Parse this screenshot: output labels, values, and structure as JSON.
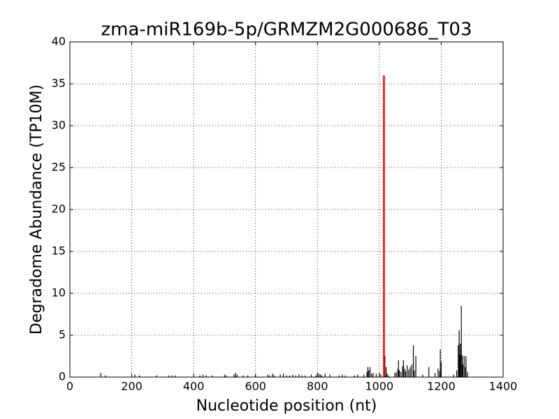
{
  "chart_data": {
    "type": "bar",
    "title": "zma-miR169b-5p/GRMZM2G000686_T03",
    "xlabel": "Nucleotide position (nt)",
    "ylabel": "Degradome Abundance (TP10M)",
    "xlim": [
      0,
      1400
    ],
    "xticks": [
      0,
      200,
      400,
      600,
      800,
      1000,
      1200,
      1400
    ],
    "ylim": [
      0,
      40
    ],
    "yticks": [
      0,
      5,
      10,
      15,
      20,
      25,
      30,
      35,
      40
    ],
    "grid": true,
    "color": "#000000",
    "x": [
      100,
      115,
      210,
      225,
      280,
      320,
      330,
      340,
      420,
      430,
      440,
      460,
      500,
      505,
      530,
      535,
      540,
      560,
      575,
      600,
      640,
      645,
      655,
      660,
      680,
      690,
      700,
      710,
      720,
      730,
      740,
      750,
      760,
      780,
      795,
      800,
      805,
      810,
      815,
      825,
      840,
      870,
      880,
      890,
      920,
      930,
      950,
      960,
      963,
      966,
      970,
      975,
      980,
      990,
      1000,
      1005,
      1018,
      1022,
      1025,
      1030,
      1050,
      1055,
      1060,
      1062,
      1065,
      1070,
      1075,
      1078,
      1082,
      1085,
      1090,
      1095,
      1100,
      1105,
      1110,
      1113,
      1118,
      1140,
      1160,
      1180,
      1190,
      1195,
      1197,
      1200,
      1240,
      1250,
      1255,
      1258,
      1260,
      1262,
      1265,
      1268,
      1270,
      1274,
      1278,
      1280,
      1285
    ],
    "values": [
      0.5,
      0.2,
      0.3,
      0.2,
      0.2,
      0.2,
      0.2,
      0.2,
      0.2,
      0.3,
      0.2,
      0.2,
      0.3,
      0.2,
      0.3,
      0.5,
      0.3,
      0.2,
      0.2,
      0.2,
      0.3,
      0.2,
      0.4,
      0.2,
      0.3,
      0.4,
      0.2,
      0.2,
      0.3,
      0.2,
      0.3,
      0.2,
      0.2,
      0.3,
      0.2,
      0.5,
      0.4,
      0.3,
      0.2,
      0.4,
      0.3,
      0.2,
      0.3,
      0.2,
      0.2,
      0.3,
      0.3,
      0.6,
      1.2,
      0.8,
      1.2,
      0.4,
      0.5,
      0.4,
      0.5,
      0.3,
      2.5,
      1.2,
      0.4,
      0.2,
      0.5,
      0.6,
      1.0,
      2.0,
      0.8,
      0.6,
      1.3,
      2.0,
      1.0,
      0.7,
      1.4,
      0.9,
      1.2,
      1.5,
      3.8,
      0.8,
      2.5,
      0.3,
      1.2,
      0.5,
      1.0,
      0.7,
      3.3,
      1.8,
      0.3,
      0.8,
      3.8,
      5.6,
      2.7,
      4.0,
      8.5,
      2.6,
      1.5,
      2.5,
      1.2,
      2.5,
      0.6
    ],
    "highlight": {
      "x": 1015,
      "value": 36,
      "color": "#ff0000"
    }
  }
}
